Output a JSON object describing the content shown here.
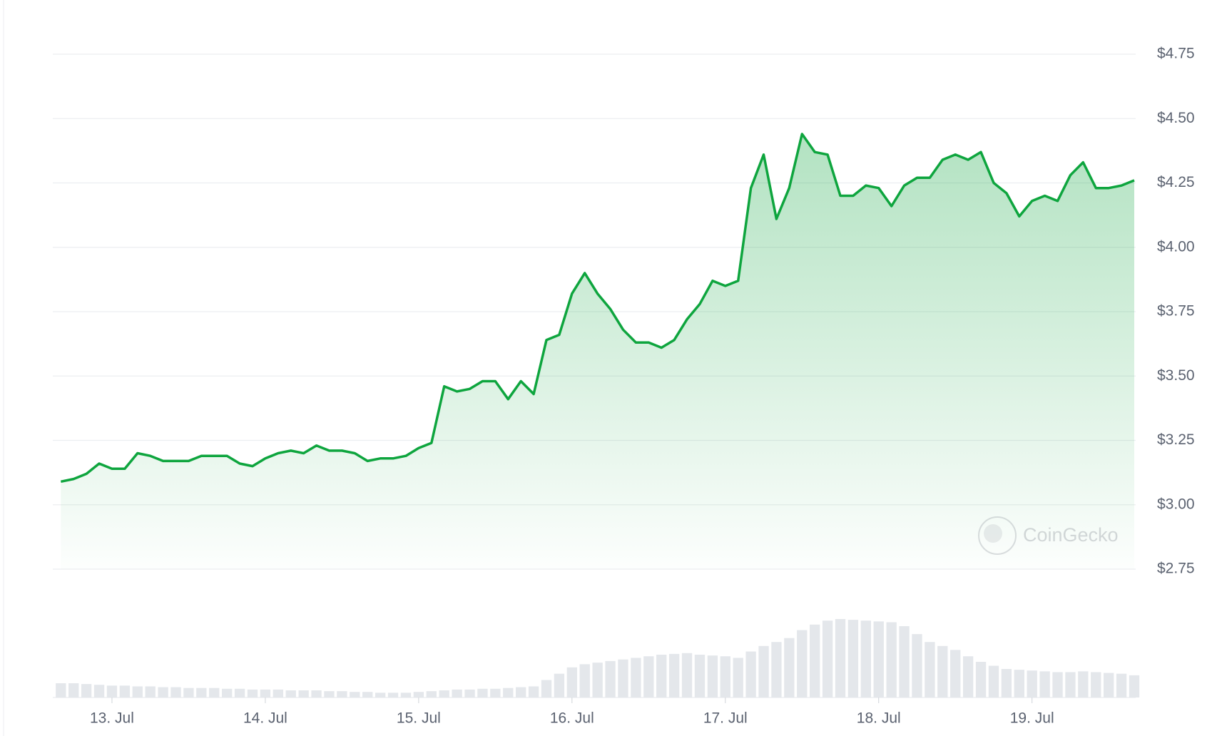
{
  "chart_data": {
    "type": "line",
    "categories": [
      null,
      null,
      null,
      null,
      "13. Jul",
      null,
      null,
      null,
      null,
      null,
      null,
      null,
      null,
      null,
      null,
      null,
      "14. Jul",
      null,
      null,
      null,
      null,
      null,
      null,
      null,
      null,
      null,
      null,
      null,
      "15. Jul",
      null,
      null,
      null,
      null,
      null,
      null,
      null,
      null,
      null,
      null,
      null,
      "16. Jul",
      null,
      null,
      null,
      null,
      null,
      null,
      null,
      null,
      null,
      null,
      null,
      "17. Jul",
      null,
      null,
      null,
      null,
      null,
      null,
      null,
      null,
      null,
      null,
      null,
      "18. Jul",
      null,
      null,
      null,
      null,
      null,
      null,
      null,
      null,
      null,
      null,
      null,
      "19. Jul",
      null,
      null,
      null,
      null,
      null,
      null,
      null,
      null
    ],
    "series": [
      {
        "color": "#0ea53e",
        "values": [
          3.09,
          3.1,
          3.12,
          3.16,
          3.14,
          3.14,
          3.2,
          3.19,
          3.17,
          3.17,
          3.17,
          3.19,
          3.19,
          3.19,
          3.16,
          3.15,
          3.18,
          3.2,
          3.21,
          3.2,
          3.23,
          3.21,
          3.21,
          3.2,
          3.17,
          3.18,
          3.18,
          3.19,
          3.22,
          3.24,
          3.46,
          3.44,
          3.45,
          3.48,
          3.48,
          3.41,
          3.48,
          3.43,
          3.64,
          3.66,
          3.82,
          3.9,
          3.82,
          3.76,
          3.68,
          3.63,
          3.63,
          3.61,
          3.64,
          3.72,
          3.78,
          3.87,
          3.85,
          3.87,
          4.23,
          4.36,
          4.11,
          4.23,
          4.44,
          4.37,
          4.36,
          4.2,
          4.2,
          4.24,
          4.23,
          4.16,
          4.24,
          4.27,
          4.27,
          4.34,
          4.36,
          4.34,
          4.37,
          4.25,
          4.21,
          4.12,
          4.18,
          4.2,
          4.18,
          4.28,
          4.33,
          4.23,
          4.23,
          4.24,
          4.26
        ]
      }
    ],
    "volumes": [
      18,
      18,
      17,
      16,
      15,
      15,
      14,
      14,
      13,
      13,
      12,
      12,
      12,
      11,
      11,
      10,
      10,
      10,
      9,
      9,
      9,
      8,
      8,
      7,
      7,
      6,
      6,
      6,
      7,
      8,
      9,
      10,
      10,
      11,
      11,
      12,
      13,
      14,
      22,
      30,
      38,
      42,
      44,
      46,
      48,
      50,
      52,
      54,
      55,
      56,
      54,
      53,
      52,
      50,
      58,
      65,
      70,
      75,
      85,
      92,
      97,
      99,
      98,
      97,
      96,
      95,
      90,
      80,
      70,
      65,
      60,
      52,
      45,
      40,
      36,
      35,
      34,
      33,
      32,
      32,
      33,
      32,
      31,
      30,
      28
    ],
    "volume_color": "#e4e7eb",
    "ylim": [
      2.75,
      4.75
    ],
    "yticks": [
      {
        "value": 2.75,
        "label": "$2.75"
      },
      {
        "value": 3.0,
        "label": "$3.00"
      },
      {
        "value": 3.25,
        "label": "$3.25"
      },
      {
        "value": 3.5,
        "label": "$3.50"
      },
      {
        "value": 3.75,
        "label": "$3.75"
      },
      {
        "value": 4.0,
        "label": "$4.00"
      },
      {
        "value": 4.25,
        "label": "$4.25"
      },
      {
        "value": 4.5,
        "label": "$4.50"
      },
      {
        "value": 4.75,
        "label": "$4.75"
      }
    ],
    "grid": true,
    "watermark": "CoinGecko"
  }
}
